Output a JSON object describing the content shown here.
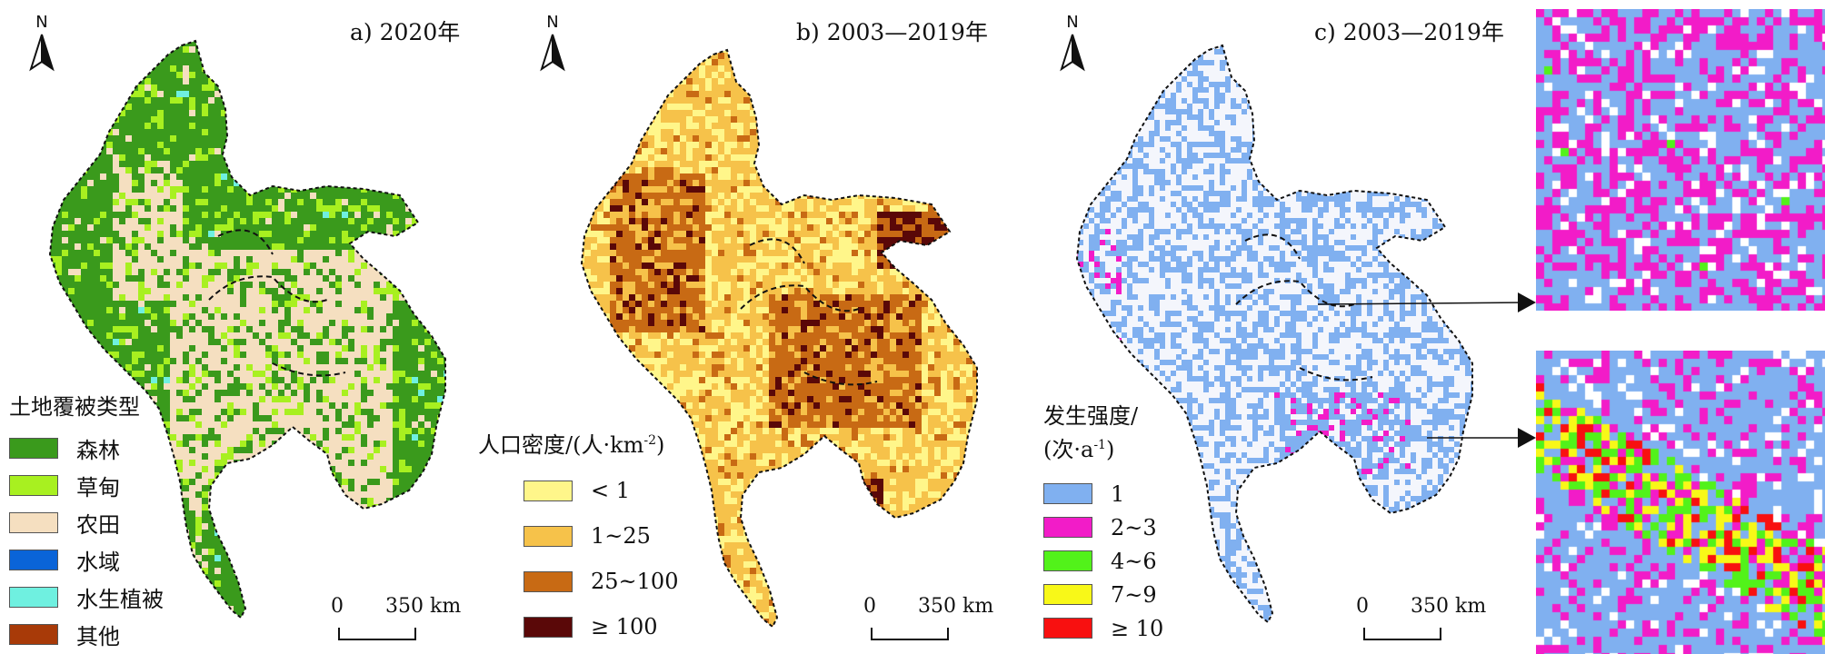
{
  "panels": [
    {
      "title": "a) 2020年",
      "north": "N",
      "legend": {
        "title": "土地覆被类型",
        "items": [
          {
            "label": "森林",
            "color": "#3a9a1c"
          },
          {
            "label": "草甸",
            "color": "#a8f020"
          },
          {
            "label": "农田",
            "color": "#f5dfc0"
          },
          {
            "label": "水域",
            "color": "#0a64d8"
          },
          {
            "label": "水生植被",
            "color": "#6ff0e0"
          },
          {
            "label": "其他",
            "color": "#a83a08"
          }
        ]
      },
      "scale": {
        "zero": "0",
        "distance": "350 km"
      }
    },
    {
      "title": "b) 2003—2019年",
      "north": "N",
      "legend": {
        "title": "人口密度/(人·km",
        "title_sup": "-2",
        "title_end": ")",
        "items": [
          {
            "label": "< 1",
            "color": "#fff68a"
          },
          {
            "label": "1~25",
            "color": "#f6c24a"
          },
          {
            "label": "25~100",
            "color": "#c86a14"
          },
          {
            "label": "≥ 100",
            "color": "#5a0808"
          }
        ]
      },
      "scale": {
        "zero": "0",
        "distance": "350 km"
      }
    },
    {
      "title": "c) 2003—2019年",
      "north": "N",
      "legend": {
        "title": "发生强度/",
        "title2": "(次·a",
        "title2_sup": "-1",
        "title2_end": ")",
        "items": [
          {
            "label": "1",
            "color": "#80b0f0"
          },
          {
            "label": "2~3",
            "color": "#f21cc8"
          },
          {
            "label": "4~6",
            "color": "#52f21a"
          },
          {
            "label": "7~9",
            "color": "#f8f818"
          },
          {
            "label": "≥ 10",
            "color": "#f81010"
          }
        ]
      },
      "scale": {
        "zero": "0",
        "distance": "350 km"
      }
    }
  ]
}
